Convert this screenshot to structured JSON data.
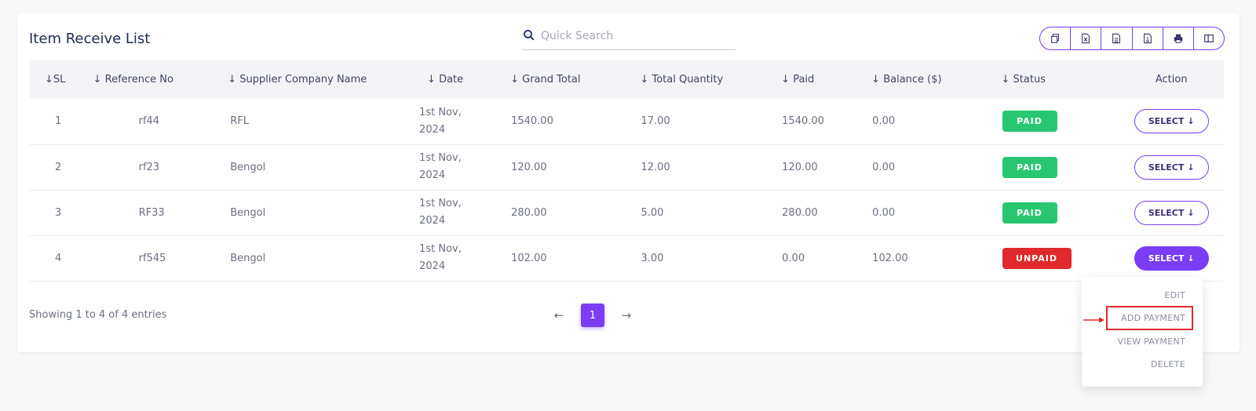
{
  "header": {
    "title": "Item Receive List",
    "search_placeholder": "Quick Search"
  },
  "export_buttons": [
    "copy-icon",
    "excel-icon",
    "csv-icon",
    "pdf-icon",
    "print-icon",
    "column-visibility-icon"
  ],
  "table": {
    "columns": [
      "SL",
      "Reference No",
      "Supplier Company Name",
      "Date",
      "Grand Total",
      "Total Quantity",
      "Paid",
      "Balance ($)",
      "Status",
      "Action"
    ],
    "rows": [
      {
        "sl": "1",
        "ref": "rf44",
        "supplier": "RFL",
        "date_line1": "1st Nov,",
        "date_line2": "2024",
        "grand_total": "1540.00",
        "total_qty": "17.00",
        "paid": "1540.00",
        "balance": "0.00",
        "status": "PAID",
        "action": "SELECT"
      },
      {
        "sl": "2",
        "ref": "rf23",
        "supplier": "Bengol",
        "date_line1": "1st Nov,",
        "date_line2": "2024",
        "grand_total": "120.00",
        "total_qty": "12.00",
        "paid": "120.00",
        "balance": "0.00",
        "status": "PAID",
        "action": "SELECT"
      },
      {
        "sl": "3",
        "ref": "RF33",
        "supplier": "Bengol",
        "date_line1": "1st Nov,",
        "date_line2": "2024",
        "grand_total": "280.00",
        "total_qty": "5.00",
        "paid": "280.00",
        "balance": "0.00",
        "status": "PAID",
        "action": "SELECT"
      },
      {
        "sl": "4",
        "ref": "rf545",
        "supplier": "Bengol",
        "date_line1": "1st Nov,",
        "date_line2": "2024",
        "grand_total": "102.00",
        "total_qty": "3.00",
        "paid": "0.00",
        "balance": "102.00",
        "status": "UNPAID",
        "action": "SELECT"
      }
    ]
  },
  "footer": {
    "showing": "Showing 1 to 4 of 4 entries",
    "current_page": "1",
    "prev": "←",
    "next": "→"
  },
  "dropdown": {
    "items": [
      "EDIT",
      "ADD PAYMENT",
      "VIEW PAYMENT",
      "DELETE"
    ]
  },
  "colors": {
    "accent": "#7a3cf5",
    "paid": "#28c76f",
    "unpaid": "#e0292c"
  }
}
